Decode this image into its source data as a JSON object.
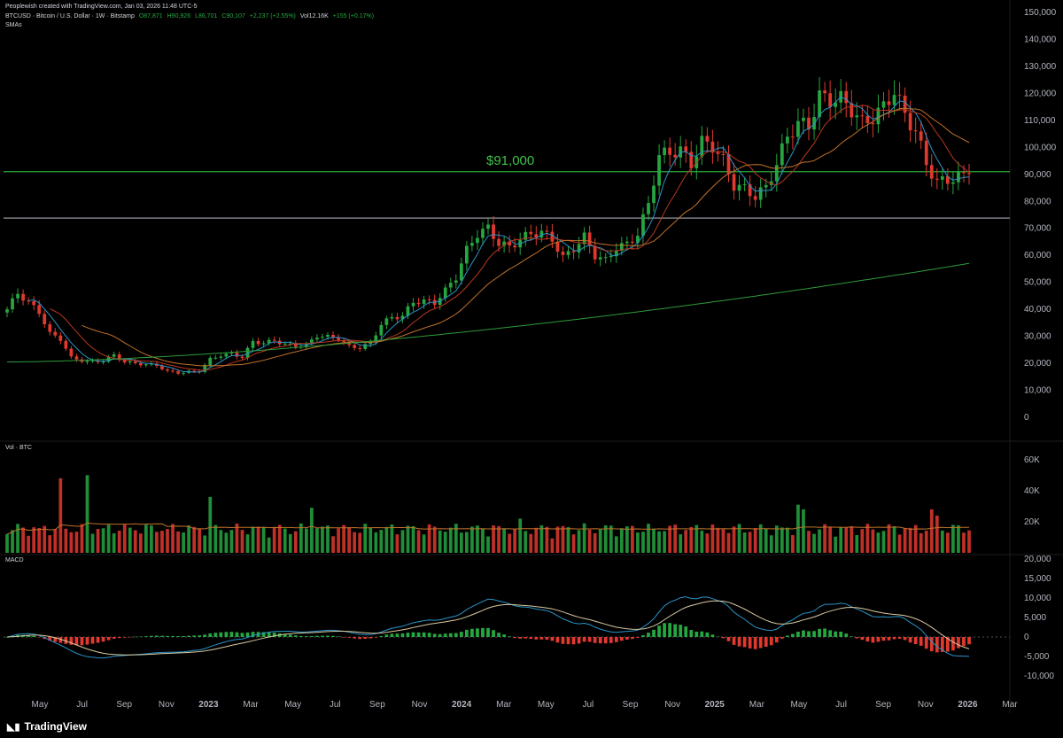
{
  "header": {
    "credit": "Peoplewish created with TradingView.com, Jan 03, 2026 11:48 UTC-5",
    "symbol": "BTCUSD · Bitcoin / U.S. Dollar · 1W · Bitstamp",
    "open": "O87,871",
    "high": "H90,926",
    "low": "L86,701",
    "close": "C90,107",
    "change": "+2,237 (+2.55%)",
    "vol": "Vol12.16K",
    "vol_change": "+155 (+0.17%)",
    "indicator": "SMAs"
  },
  "panes": {
    "volume_label": "Vol · BTC",
    "macd_label": "MACD"
  },
  "annotation": "$91,000",
  "branding": "TradingView",
  "colors": {
    "up": "#26a641",
    "down": "#e0392f",
    "level_line": "#2fae3a",
    "support_line": "#9598a1",
    "sma_fast": "#2a93c9",
    "sma_mid": "#b8371f",
    "sma_slow": "#c0722a",
    "sma_long": "#2e9a3a",
    "macd_line": "#2a93c9",
    "signal_line": "#d9c9a0"
  },
  "chart_data": [
    {
      "type": "candlestick",
      "title": "BTCUSD · Bitcoin / U.S. Dollar · 1W · Bitstamp",
      "y_ticks": [
        "150,000",
        "140,000",
        "130,000",
        "120,000",
        "110,000",
        "100,000",
        "90,000",
        "80,000",
        "70,000",
        "60,000",
        "50,000",
        "40,000",
        "30,000",
        "20,000",
        "10,000",
        "0"
      ],
      "ylim": [
        0,
        150000
      ],
      "x_ticks": [
        "May",
        "Jul",
        "Sep",
        "Nov",
        "2023",
        "Mar",
        "May",
        "Jul",
        "Sep",
        "Nov",
        "2024",
        "Mar",
        "May",
        "Jul",
        "Sep",
        "Nov",
        "2025",
        "Mar",
        "May",
        "Jul",
        "Sep",
        "Nov",
        "2026",
        "Mar"
      ],
      "horizontal_levels": [
        {
          "label": "$91,000",
          "value": 91000
        },
        {
          "value": 73800
        }
      ],
      "price_anchors": [
        [
          0,
          40000
        ],
        [
          2,
          46000
        ],
        [
          6,
          39000
        ],
        [
          8,
          31000
        ],
        [
          10,
          29000
        ],
        [
          12,
          22000
        ],
        [
          14,
          21000
        ],
        [
          16,
          20500
        ],
        [
          18,
          21000
        ],
        [
          20,
          23000
        ],
        [
          22,
          20500
        ],
        [
          24,
          20000
        ],
        [
          26,
          19500
        ],
        [
          28,
          19300
        ],
        [
          30,
          17000
        ],
        [
          32,
          16500
        ],
        [
          34,
          16800
        ],
        [
          36,
          17200
        ],
        [
          38,
          21500
        ],
        [
          40,
          23000
        ],
        [
          42,
          23500
        ],
        [
          44,
          22300
        ],
        [
          46,
          28000
        ],
        [
          48,
          27500
        ],
        [
          50,
          28500
        ],
        [
          52,
          27000
        ],
        [
          54,
          26500
        ],
        [
          56,
          26800
        ],
        [
          58,
          30200
        ],
        [
          60,
          29800
        ],
        [
          62,
          29300
        ],
        [
          64,
          26200
        ],
        [
          66,
          25800
        ],
        [
          68,
          27500
        ],
        [
          70,
          34500
        ],
        [
          72,
          37000
        ],
        [
          74,
          37500
        ],
        [
          76,
          42800
        ],
        [
          78,
          43000
        ],
        [
          80,
          42500
        ],
        [
          82,
          47000
        ],
        [
          84,
          52000
        ],
        [
          86,
          62000
        ],
        [
          88,
          68000
        ],
        [
          90,
          70000
        ],
        [
          92,
          64500
        ],
        [
          94,
          63000
        ],
        [
          96,
          66000
        ],
        [
          98,
          68000
        ],
        [
          100,
          68500
        ],
        [
          102,
          66000
        ],
        [
          104,
          59000
        ],
        [
          106,
          62500
        ],
        [
          108,
          66800
        ],
        [
          110,
          60000
        ],
        [
          112,
          58000
        ],
        [
          114,
          63000
        ],
        [
          116,
          64000
        ],
        [
          118,
          68000
        ],
        [
          120,
          79000
        ],
        [
          122,
          97000
        ],
        [
          124,
          98000
        ],
        [
          126,
          99000
        ],
        [
          128,
          94000
        ],
        [
          130,
          102000
        ],
        [
          132,
          100500
        ],
        [
          134,
          95000
        ],
        [
          136,
          86000
        ],
        [
          138,
          84500
        ],
        [
          140,
          82000
        ],
        [
          142,
          85000
        ],
        [
          144,
          94000
        ],
        [
          146,
          104000
        ],
        [
          148,
          109000
        ],
        [
          150,
          108000
        ],
        [
          152,
          119000
        ],
        [
          154,
          117500
        ],
        [
          156,
          118000
        ],
        [
          158,
          114000
        ],
        [
          160,
          109000
        ],
        [
          162,
          111000
        ],
        [
          164,
          115000
        ],
        [
          166,
          121000
        ],
        [
          168,
          112000
        ],
        [
          170,
          106000
        ],
        [
          172,
          94000
        ],
        [
          174,
          87000
        ],
        [
          176,
          88000
        ],
        [
          178,
          89000
        ],
        [
          180,
          90100
        ]
      ],
      "volume_y_ticks": [
        "60K",
        "40K",
        "20K"
      ],
      "macd_y_ticks": [
        "20,000",
        "15,000",
        "10,000",
        "5,000",
        "0",
        "-5,000",
        "-10,000"
      ]
    }
  ]
}
